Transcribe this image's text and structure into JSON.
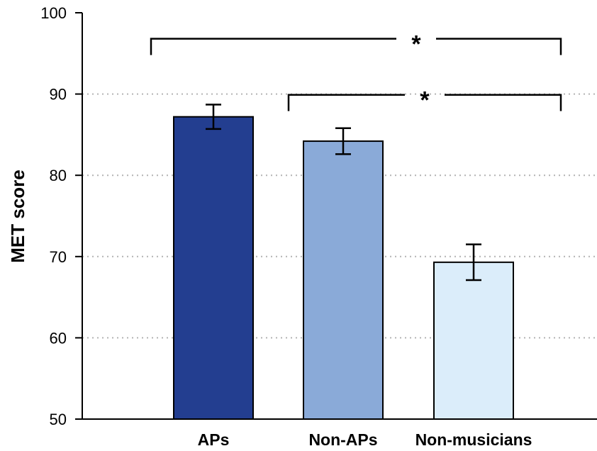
{
  "chart_data": {
    "type": "bar",
    "ylabel": "MET score",
    "ylim": [
      50,
      100
    ],
    "yticks": [
      50,
      60,
      70,
      80,
      90,
      100
    ],
    "grid": "horizontal-dotted",
    "categories": [
      "APs",
      "Non-APs",
      "Non-musicians"
    ],
    "values": [
      87.2,
      84.2,
      69.3
    ],
    "errors": [
      1.5,
      1.6,
      2.2
    ],
    "colors": [
      "#233e90",
      "#8aaad8",
      "#dbedfa"
    ],
    "significance": [
      {
        "from": 0,
        "to": 2,
        "label": "*",
        "y": 96.8,
        "drop": 2.0
      },
      {
        "from": 1,
        "to": 2,
        "label": "*",
        "y": 89.9,
        "drop": 2.0
      }
    ]
  }
}
